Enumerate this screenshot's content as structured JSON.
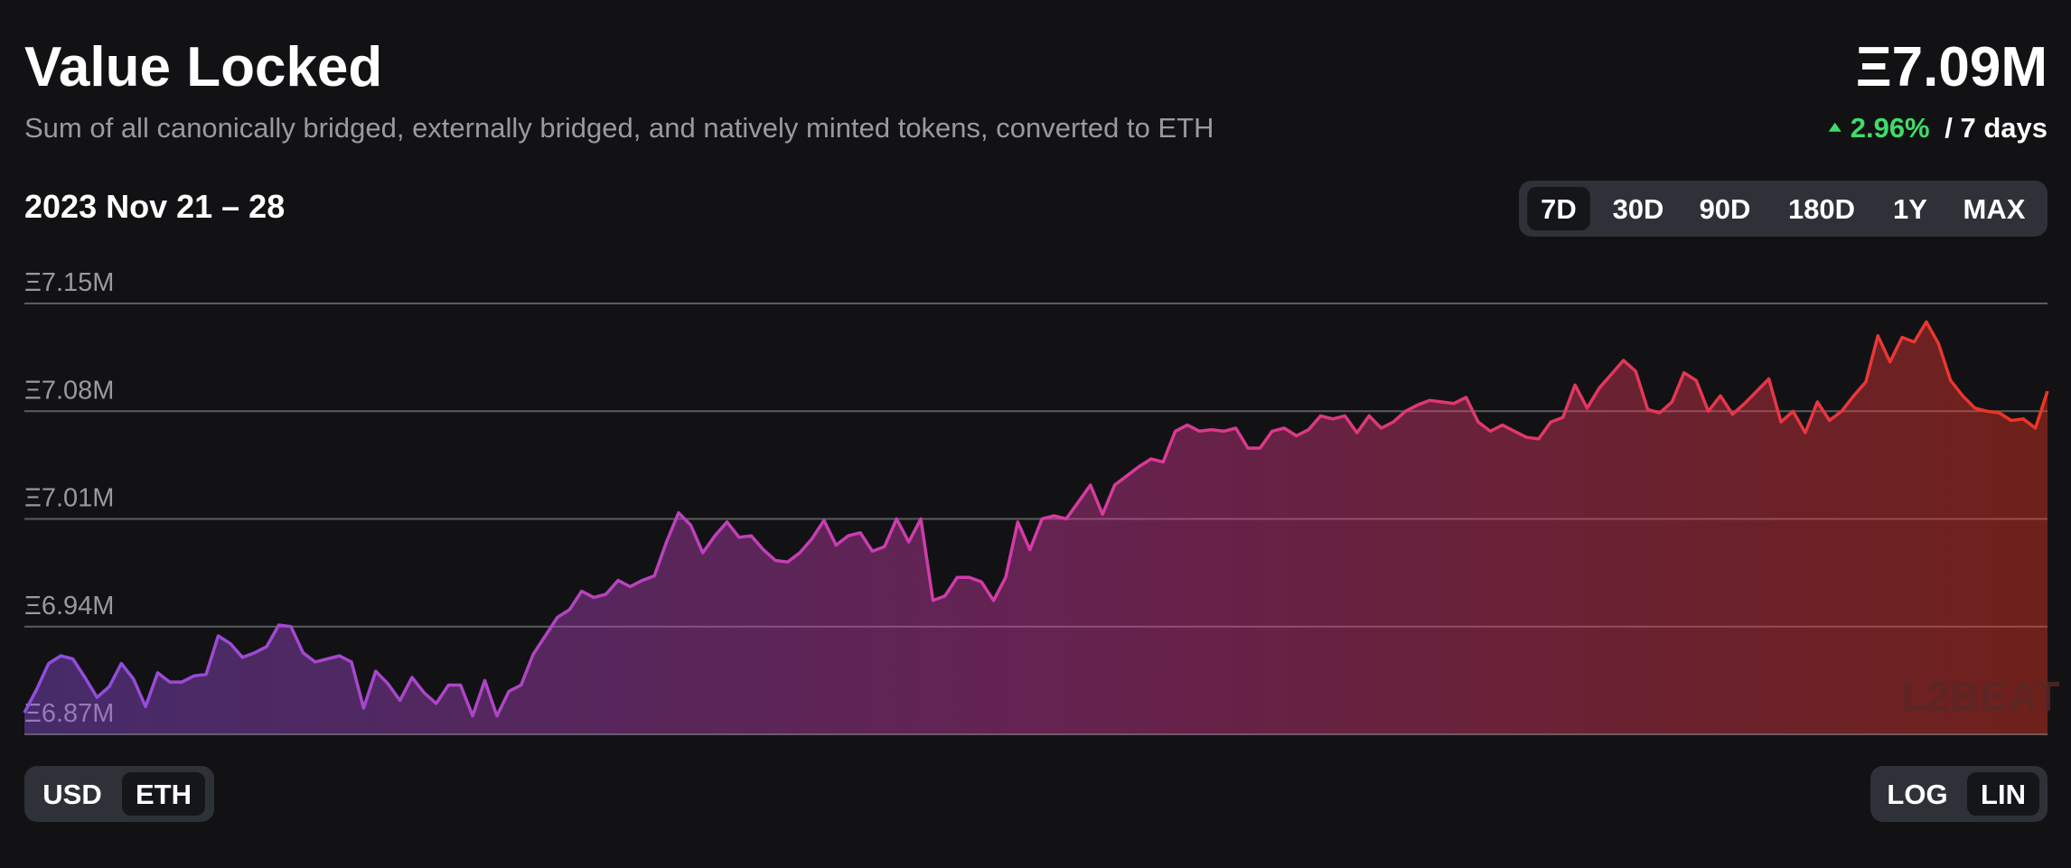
{
  "header": {
    "title": "Value Locked",
    "subtitle": "Sum of all canonically bridged, externally bridged, and natively minted tokens, converted to ETH",
    "total": "Ξ7.09M",
    "change": "2.96%",
    "change_period": "/ 7 days",
    "date_range": "2023 Nov 21 – 28"
  },
  "range_buttons": {
    "labels": [
      "7D",
      "30D",
      "90D",
      "180D",
      "1Y",
      "MAX"
    ],
    "active": 0
  },
  "unit_buttons": {
    "labels": [
      "USD",
      "ETH"
    ],
    "active": 1
  },
  "scale_buttons": {
    "labels": [
      "LOG",
      "LIN"
    ],
    "active": 1
  },
  "watermark": "L2BEAT",
  "chart_data": {
    "type": "area",
    "values": [
      6.884,
      6.899,
      6.916,
      6.921,
      6.919,
      6.907,
      6.894,
      6.901,
      6.916,
      6.906,
      6.888,
      6.91,
      6.904,
      6.904,
      6.908,
      6.909,
      6.934,
      6.929,
      6.92,
      6.923,
      6.927,
      6.941,
      6.94,
      6.923,
      6.917,
      6.919,
      6.921,
      6.917,
      6.887,
      6.911,
      6.903,
      6.892,
      6.907,
      6.897,
      6.89,
      6.902,
      6.902,
      6.882,
      6.905,
      6.882,
      6.898,
      6.902,
      6.922,
      6.934,
      6.946,
      6.951,
      6.963,
      6.959,
      6.961,
      6.97,
      6.966,
      6.97,
      6.973,
      6.995,
      7.014,
      7.006,
      6.988,
      6.999,
      7.008,
      6.998,
      6.999,
      6.99,
      6.983,
      6.982,
      6.988,
      6.997,
      7.009,
      6.993,
      6.999,
      7.001,
      6.989,
      6.992,
      7.01,
      6.995,
      7.01,
      6.957,
      6.96,
      6.972,
      6.972,
      6.969,
      6.957,
      6.972,
      7.008,
      6.99,
      7.01,
      7.012,
      7.01,
      7.021,
      7.032,
      7.013,
      7.032,
      7.038,
      7.044,
      7.049,
      7.047,
      7.067,
      7.071,
      7.067,
      7.068,
      7.067,
      7.069,
      7.056,
      7.056,
      7.067,
      7.069,
      7.064,
      7.068,
      7.077,
      7.075,
      7.077,
      7.066,
      7.077,
      7.069,
      7.073,
      7.08,
      7.084,
      7.087,
      7.086,
      7.085,
      7.089,
      7.073,
      7.067,
      7.071,
      7.067,
      7.063,
      7.062,
      7.073,
      7.076,
      7.097,
      7.082,
      7.095,
      7.104,
      7.113,
      7.106,
      7.081,
      7.079,
      7.086,
      7.105,
      7.1,
      7.08,
      7.09,
      7.078,
      7.085,
      7.093,
      7.101,
      7.073,
      7.08,
      7.066,
      7.086,
      7.074,
      7.08,
      7.09,
      7.099,
      7.129,
      7.112,
      7.128,
      7.125,
      7.138,
      7.124,
      7.1,
      7.09,
      7.082,
      7.08,
      7.079,
      7.074,
      7.075,
      7.069,
      7.093
    ],
    "ylim": [
      6.87,
      7.15
    ],
    "yticks": [
      {
        "value": 6.87,
        "label": "Ξ6.87M"
      },
      {
        "value": 6.94,
        "label": "Ξ6.94M"
      },
      {
        "value": 7.01,
        "label": "Ξ7.01M"
      },
      {
        "value": 7.08,
        "label": "Ξ7.08M"
      },
      {
        "value": 7.15,
        "label": "Ξ7.15M"
      }
    ],
    "grid": true,
    "colors": [
      "#8e4ee0",
      "#d63aa6",
      "#ee3522"
    ]
  }
}
